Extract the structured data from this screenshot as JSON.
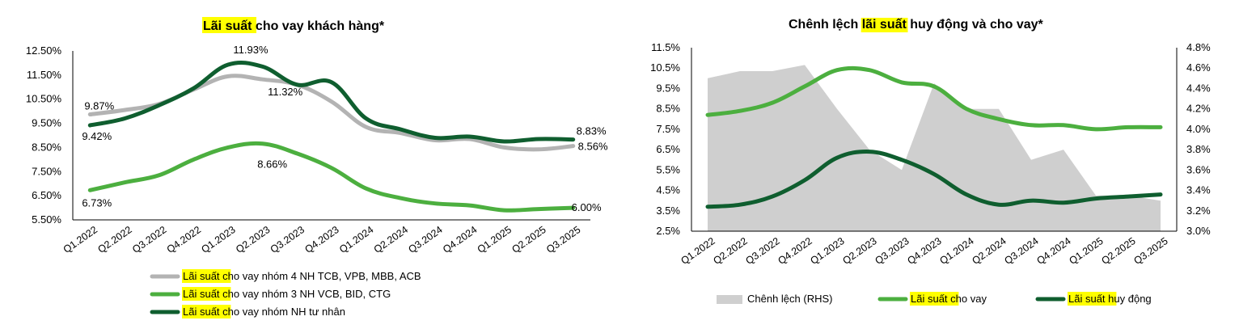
{
  "chart_data": [
    {
      "type": "line",
      "title_highlight": "Lãi suất",
      "title_rest": " cho vay khách hàng*",
      "categories": [
        "Q1.2022",
        "Q2.2022",
        "Q3.2022",
        "Q4.2022",
        "Q1.2023",
        "Q2.2023",
        "Q3.2023",
        "Q4.2023",
        "Q1.2024",
        "Q2.2024",
        "Q3.2024",
        "Q4.2024",
        "Q1.2025",
        "Q2.2025",
        "Q3.2025"
      ],
      "ylim": [
        5.5,
        12.5
      ],
      "y_ticks": [
        "12.50%",
        "11.50%",
        "10.50%",
        "9.50%",
        "8.50%",
        "7.50%",
        "6.50%",
        "5.50%"
      ],
      "series": [
        {
          "name_highlight": "Lãi suất",
          "name_rest": " cho vay nhóm 4 NH TCB, VPB, MBB, ACB",
          "color": "#b3b3b3",
          "values": [
            9.87,
            10.05,
            10.3,
            10.9,
            11.45,
            11.32,
            11.1,
            10.4,
            9.35,
            9.1,
            8.8,
            8.85,
            8.5,
            8.42,
            8.56
          ]
        },
        {
          "name_highlight": "Lãi suất",
          "name_rest": " cho vay nhóm 3 NH VCB, BID, CTG",
          "color": "#4caf3f",
          "values": [
            6.73,
            7.05,
            7.35,
            8.0,
            8.5,
            8.66,
            8.25,
            7.65,
            6.8,
            6.4,
            6.18,
            6.1,
            5.9,
            5.95,
            6.0
          ]
        },
        {
          "name_highlight": "Lãi suất",
          "name_rest": " cho vay nhóm NH tư nhân",
          "color": "#0f5e2f",
          "values": [
            9.42,
            9.7,
            10.25,
            10.95,
            11.93,
            11.85,
            11.1,
            11.2,
            9.7,
            9.25,
            8.9,
            8.95,
            8.75,
            8.85,
            8.83
          ]
        }
      ],
      "data_labels": [
        {
          "series": 0,
          "index": 0,
          "text": "9.87%"
        },
        {
          "series": 2,
          "index": 0,
          "text": "9.42%"
        },
        {
          "series": 2,
          "index": 4,
          "text": "11.93%"
        },
        {
          "series": 0,
          "index": 5,
          "text": "11.32%"
        },
        {
          "series": 1,
          "index": 5,
          "text": "8.66%"
        },
        {
          "series": 1,
          "index": 0,
          "text": "6.73%"
        },
        {
          "series": 2,
          "index": 14,
          "text": "8.83%"
        },
        {
          "series": 0,
          "index": 14,
          "text": "8.56%"
        },
        {
          "series": 1,
          "index": 14,
          "text": "6.00%"
        }
      ]
    },
    {
      "type": "line",
      "title_pre": "Chênh lệch ",
      "title_highlight": "lãi suất",
      "title_rest": " huy động và cho vay*",
      "categories": [
        "Q1.2022",
        "Q2.2022",
        "Q3.2022",
        "Q4.2022",
        "Q1.2023",
        "Q2.2023",
        "Q3.2023",
        "Q4.2023",
        "Q1.2024",
        "Q2.2024",
        "Q3.2024",
        "Q4.2024",
        "Q1.2025",
        "Q2.2025",
        "Q3.2025"
      ],
      "ylim": [
        2.5,
        11.5
      ],
      "y2lim": [
        3.0,
        4.8
      ],
      "y_ticks": [
        "11.5%",
        "10.5%",
        "9.5%",
        "8.5%",
        "7.5%",
        "6.5%",
        "5.5%",
        "4.5%",
        "3.5%",
        "2.5%"
      ],
      "y2_ticks": [
        "4.8%",
        "4.6%",
        "4.4%",
        "4.2%",
        "4.0%",
        "3.8%",
        "3.6%",
        "3.4%",
        "3.2%",
        "3.0%"
      ],
      "area": {
        "name": "Chênh lệch (RHS)",
        "color": "#cfcfcf",
        "axis": "right",
        "values": [
          4.5,
          4.57,
          4.57,
          4.63,
          4.2,
          3.8,
          3.6,
          4.45,
          4.2,
          4.2,
          3.7,
          3.8,
          3.35,
          3.35,
          3.3
        ]
      },
      "series": [
        {
          "name_highlight": "Lãi suất",
          "name_rest": " cho vay",
          "color": "#4caf3f",
          "values": [
            8.2,
            8.4,
            8.8,
            9.6,
            10.4,
            10.4,
            9.8,
            9.6,
            8.5,
            8.0,
            7.7,
            7.7,
            7.5,
            7.6,
            7.6
          ]
        },
        {
          "name_highlight": "Lãi suất",
          "name_rest": " huy động",
          "color": "#0f5e2f",
          "values": [
            3.7,
            3.8,
            4.2,
            5.0,
            6.1,
            6.4,
            6.0,
            5.3,
            4.3,
            3.8,
            4.0,
            3.9,
            4.1,
            4.2,
            4.3
          ]
        }
      ]
    }
  ]
}
